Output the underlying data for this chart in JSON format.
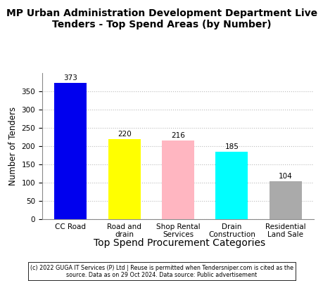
{
  "title": "MP Urban Administration Development Department Live\nTenders - Top Spend Areas (by Number)",
  "categories": [
    "CC Road",
    "Road and\ndrain",
    "Shop Rental\nServices",
    "Drain\nConstruction",
    "Residential\nLand Sale"
  ],
  "values": [
    373,
    220,
    216,
    185,
    104
  ],
  "bar_colors": [
    "#0000EE",
    "#FFFF00",
    "#FFB6C1",
    "#00FFFF",
    "#AAAAAA"
  ],
  "xlabel": "Top Spend Procurement Categories",
  "ylabel": "Number of Tenders",
  "ylim": [
    0,
    400
  ],
  "yticks": [
    0,
    50,
    100,
    150,
    200,
    250,
    300,
    350
  ],
  "title_fontsize": 10,
  "label_fontsize": 8.5,
  "tick_fontsize": 7.5,
  "value_fontsize": 7.5,
  "footnote_line1": "(c) 2022 GUGA IT Services (P) Ltd | Reuse is permitted when Tendersniper.com is cited as the",
  "footnote_line2": "source. Data as on 29 Oct 2024. Data source: Public advertisement",
  "background_color": "#FFFFFF"
}
